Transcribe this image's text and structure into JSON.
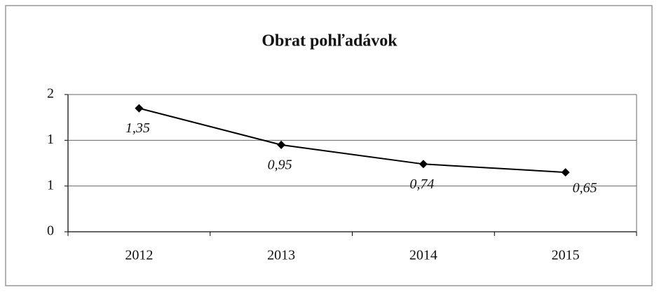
{
  "chart_data": {
    "type": "line",
    "title": "Obrat pohľadávok",
    "categories": [
      "2012",
      "2013",
      "2014",
      "2015"
    ],
    "values": [
      1.35,
      0.95,
      0.74,
      0.65
    ],
    "value_labels": [
      "1,35",
      "0,95",
      "0,74",
      "0,65"
    ],
    "color": "#000000",
    "ylim": [
      0,
      1.5
    ],
    "yticks": [
      0,
      {
        "value": 0.5,
        "label": "1"
      },
      1,
      {
        "value": 1.5,
        "label": "2"
      }
    ],
    "grid": true
  }
}
